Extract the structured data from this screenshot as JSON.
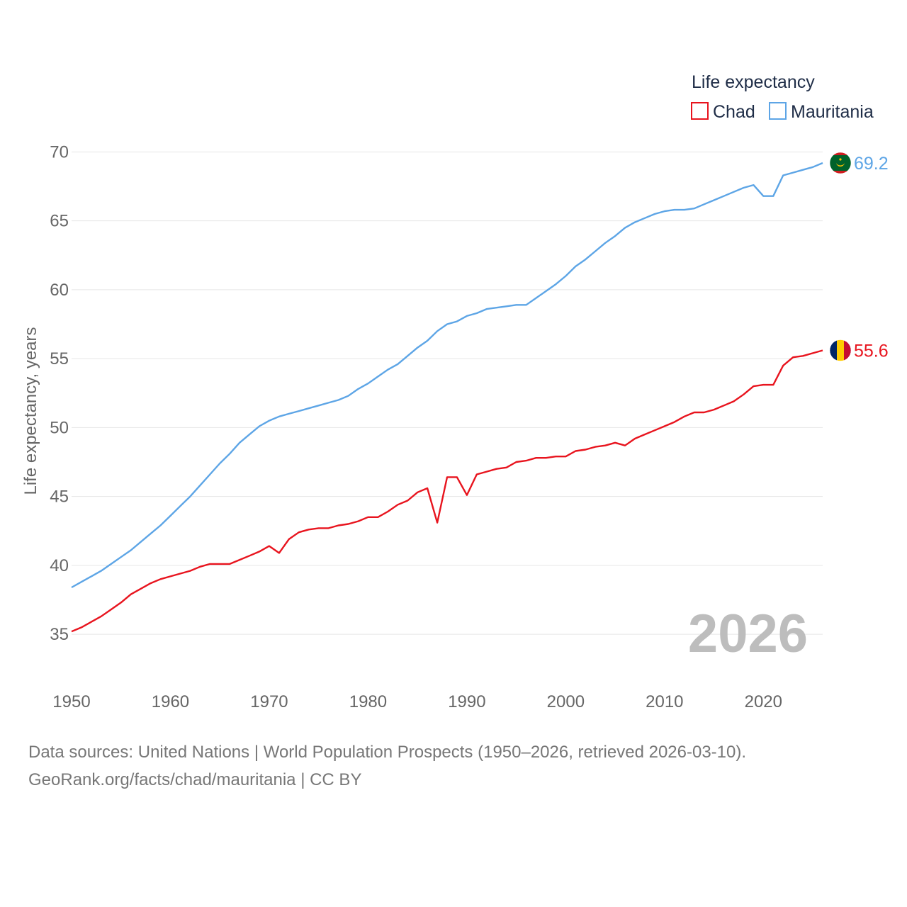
{
  "chart_data": {
    "type": "line",
    "legend_title": "Life expectancy",
    "legend_position": "top-right",
    "ylabel": "Life expectancy, years",
    "xlabel": "",
    "xlim": [
      1950,
      2026
    ],
    "ylim": [
      33,
      71
    ],
    "x_ticks": [
      1950,
      1960,
      1970,
      1980,
      1990,
      2000,
      2010,
      2020
    ],
    "x_tick_labels": [
      "1950",
      "1960",
      "1970",
      "1980",
      "1990",
      "2000",
      "2010",
      "2020"
    ],
    "y_ticks": [
      35,
      40,
      45,
      50,
      55,
      60,
      65,
      70
    ],
    "y_tick_labels": [
      "35",
      "40",
      "45",
      "50",
      "55",
      "60",
      "65",
      "70"
    ],
    "grid": true,
    "year_label": "2026",
    "series": [
      {
        "name": "Chad",
        "color": "#e8141e",
        "end_label": "55.6",
        "flag": "chad-flag",
        "x": [
          1950,
          1951,
          1952,
          1953,
          1954,
          1955,
          1956,
          1957,
          1958,
          1959,
          1960,
          1961,
          1962,
          1963,
          1964,
          1965,
          1966,
          1967,
          1968,
          1969,
          1970,
          1971,
          1972,
          1973,
          1974,
          1975,
          1976,
          1977,
          1978,
          1979,
          1980,
          1981,
          1982,
          1983,
          1984,
          1985,
          1986,
          1987,
          1988,
          1989,
          1990,
          1991,
          1992,
          1993,
          1994,
          1995,
          1996,
          1997,
          1998,
          1999,
          2000,
          2001,
          2002,
          2003,
          2004,
          2005,
          2006,
          2007,
          2008,
          2009,
          2010,
          2011,
          2012,
          2013,
          2014,
          2015,
          2016,
          2017,
          2018,
          2019,
          2020,
          2021,
          2022,
          2023,
          2024,
          2025,
          2026
        ],
        "values": [
          35.2,
          35.5,
          35.9,
          36.3,
          36.8,
          37.3,
          37.9,
          38.3,
          38.7,
          39.0,
          39.2,
          39.4,
          39.6,
          39.9,
          40.1,
          40.1,
          40.1,
          40.4,
          40.7,
          41.0,
          41.4,
          40.9,
          41.9,
          42.4,
          42.6,
          42.7,
          42.7,
          42.9,
          43.0,
          43.2,
          43.5,
          43.5,
          43.9,
          44.4,
          44.7,
          45.3,
          45.6,
          43.1,
          46.4,
          46.4,
          45.1,
          46.6,
          46.8,
          47.0,
          47.1,
          47.5,
          47.6,
          47.8,
          47.8,
          47.9,
          47.9,
          48.3,
          48.4,
          48.6,
          48.7,
          48.9,
          48.7,
          49.2,
          49.5,
          49.8,
          50.1,
          50.4,
          50.8,
          51.1,
          51.1,
          51.3,
          51.6,
          51.9,
          52.4,
          53.0,
          53.1,
          53.1,
          54.5,
          55.1,
          55.2,
          55.4,
          55.6
        ]
      },
      {
        "name": "Mauritania",
        "color": "#5da5e6",
        "end_label": "69.2",
        "flag": "mauritania-flag",
        "x": [
          1950,
          1951,
          1952,
          1953,
          1954,
          1955,
          1956,
          1957,
          1958,
          1959,
          1960,
          1961,
          1962,
          1963,
          1964,
          1965,
          1966,
          1967,
          1968,
          1969,
          1970,
          1971,
          1972,
          1973,
          1974,
          1975,
          1976,
          1977,
          1978,
          1979,
          1980,
          1981,
          1982,
          1983,
          1984,
          1985,
          1986,
          1987,
          1988,
          1989,
          1990,
          1991,
          1992,
          1993,
          1994,
          1995,
          1996,
          1997,
          1998,
          1999,
          2000,
          2001,
          2002,
          2003,
          2004,
          2005,
          2006,
          2007,
          2008,
          2009,
          2010,
          2011,
          2012,
          2013,
          2014,
          2015,
          2016,
          2017,
          2018,
          2019,
          2020,
          2021,
          2022,
          2023,
          2024,
          2025,
          2026
        ],
        "values": [
          38.4,
          38.8,
          39.2,
          39.6,
          40.1,
          40.6,
          41.1,
          41.7,
          42.3,
          42.9,
          43.6,
          44.3,
          45.0,
          45.8,
          46.6,
          47.4,
          48.1,
          48.9,
          49.5,
          50.1,
          50.5,
          50.8,
          51.0,
          51.2,
          51.4,
          51.6,
          51.8,
          52.0,
          52.3,
          52.8,
          53.2,
          53.7,
          54.2,
          54.6,
          55.2,
          55.8,
          56.3,
          57.0,
          57.5,
          57.7,
          58.1,
          58.3,
          58.6,
          58.7,
          58.8,
          58.9,
          58.9,
          59.4,
          59.9,
          60.4,
          61.0,
          61.7,
          62.2,
          62.8,
          63.4,
          63.9,
          64.5,
          64.9,
          65.2,
          65.5,
          65.7,
          65.8,
          65.8,
          65.9,
          66.2,
          66.5,
          66.8,
          67.1,
          67.4,
          67.6,
          66.8,
          66.8,
          68.3,
          68.5,
          68.7,
          68.9,
          69.2
        ]
      }
    ]
  },
  "footer": {
    "source_line": "Data sources: United Nations | World Population Prospects (1950–2026, retrieved 2026-03-10).",
    "credit_line": "GeoRank.org/facts/chad/mauritania | CC BY"
  }
}
